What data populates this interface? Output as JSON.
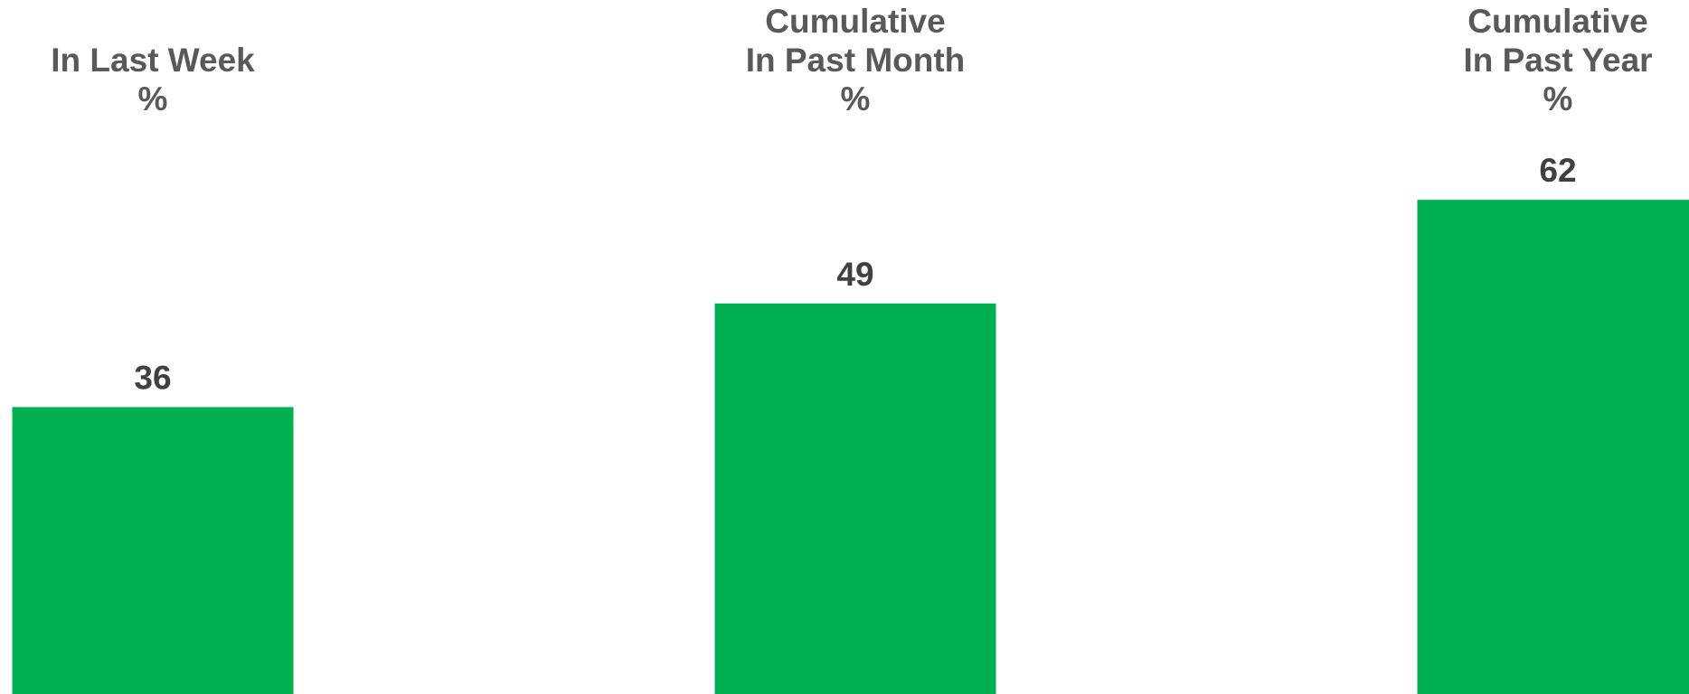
{
  "chart_data": {
    "type": "bar",
    "categories": [
      [
        "In Last Week",
        "%"
      ],
      [
        "Cumulative",
        "In Past Month",
        "%"
      ],
      [
        "Cumulative",
        "In Past Year",
        "%"
      ]
    ],
    "values": [
      36,
      49,
      62
    ],
    "data_labels": [
      "36",
      "49",
      "62"
    ],
    "title": "",
    "xlabel": "",
    "ylabel": "",
    "ylim": [
      0,
      100
    ],
    "grid": false,
    "legend": "none",
    "colors": {
      "bar": "#00B050",
      "header_text": "#595959",
      "value_text": "#404040"
    }
  }
}
